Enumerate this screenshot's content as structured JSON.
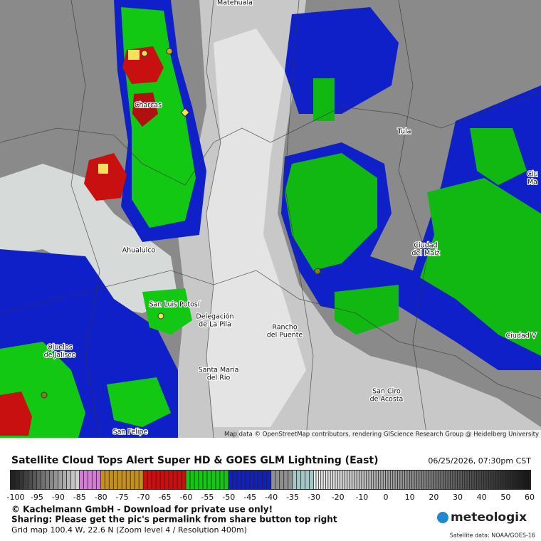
{
  "map": {
    "places": [
      {
        "lines": [
          "Matehuala"
        ]
      },
      {
        "lines": [
          "Charcas"
        ]
      },
      {
        "lines": [
          "Tula"
        ]
      },
      {
        "lines": [
          "Ciu",
          "Ma"
        ]
      },
      {
        "lines": [
          "Ciudad",
          "del Maíz"
        ]
      },
      {
        "lines": [
          "Ahualulco"
        ]
      },
      {
        "lines": [
          "San Luis Potosí"
        ]
      },
      {
        "lines": [
          "Delegación",
          "de La Pila"
        ]
      },
      {
        "lines": [
          "Rancho",
          "del Puente"
        ]
      },
      {
        "lines": [
          "Ciudad V"
        ]
      },
      {
        "lines": [
          "Ojuelos",
          "de Jalisco"
        ]
      },
      {
        "lines": [
          "Santa María",
          "del Río"
        ]
      },
      {
        "lines": [
          "San Ciro",
          "de Acosta"
        ]
      },
      {
        "lines": [
          "San Felipe"
        ]
      }
    ],
    "attribution": "Map data © OpenStreetMap contributors, rendering GIScience Research Group @ Heidelberg University"
  },
  "legend": {
    "title": "Satellite Cloud Tops Alert Super HD & GOES GLM Lightning (East)",
    "datetime": "06/25/2026, 07:30pm CST",
    "ticks": [
      -100,
      -95,
      -90,
      -85,
      -80,
      -75,
      -70,
      -65,
      -60,
      -55,
      -50,
      -45,
      -40,
      -35,
      -30,
      -20,
      -10,
      0,
      10,
      20,
      30,
      40,
      50,
      60
    ]
  },
  "footer": {
    "copyright": "© Kachelmann GmbH - Download for private use only!",
    "sharing": "Sharing: Please get the pic's permalink from share button top right",
    "grid": "Grid map 100.4 W, 22.6 N (Zoom level 4 / Resolution 400m)",
    "brand": "meteologix",
    "source": "Satellite data: NOAA/GOES-16"
  }
}
